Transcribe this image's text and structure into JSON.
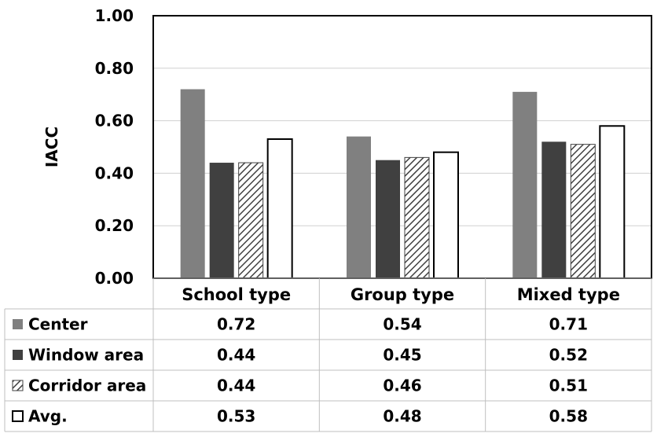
{
  "chart_data": {
    "type": "bar",
    "title": "",
    "xlabel": "",
    "ylabel": "IACC",
    "ylim": [
      0,
      1
    ],
    "yticks": [
      "0.00",
      "0.20",
      "0.40",
      "0.60",
      "0.80",
      "1.00"
    ],
    "grid": true,
    "legend_placement": "data-table-left",
    "categories": [
      "School type",
      "Group type",
      "Mixed type"
    ],
    "series": [
      {
        "name": "Center",
        "values": [
          0.72,
          0.54,
          0.71
        ],
        "fill": "solid",
        "color": "#808080"
      },
      {
        "name": "Window area",
        "values": [
          0.44,
          0.45,
          0.52
        ],
        "fill": "solid",
        "color": "#404040"
      },
      {
        "name": "Corridor area",
        "values": [
          0.44,
          0.46,
          0.51
        ],
        "fill": "diagonal-hatch",
        "color": "#404040"
      },
      {
        "name": "Avg.",
        "values": [
          0.53,
          0.48,
          0.58
        ],
        "fill": "white",
        "color": "#ffffff"
      }
    ],
    "table": {
      "rows": [
        [
          "0.72",
          "0.54",
          "0.71"
        ],
        [
          "0.44",
          "0.45",
          "0.52"
        ],
        [
          "0.44",
          "0.46",
          "0.51"
        ],
        [
          "0.53",
          "0.48",
          "0.58"
        ]
      ]
    }
  }
}
